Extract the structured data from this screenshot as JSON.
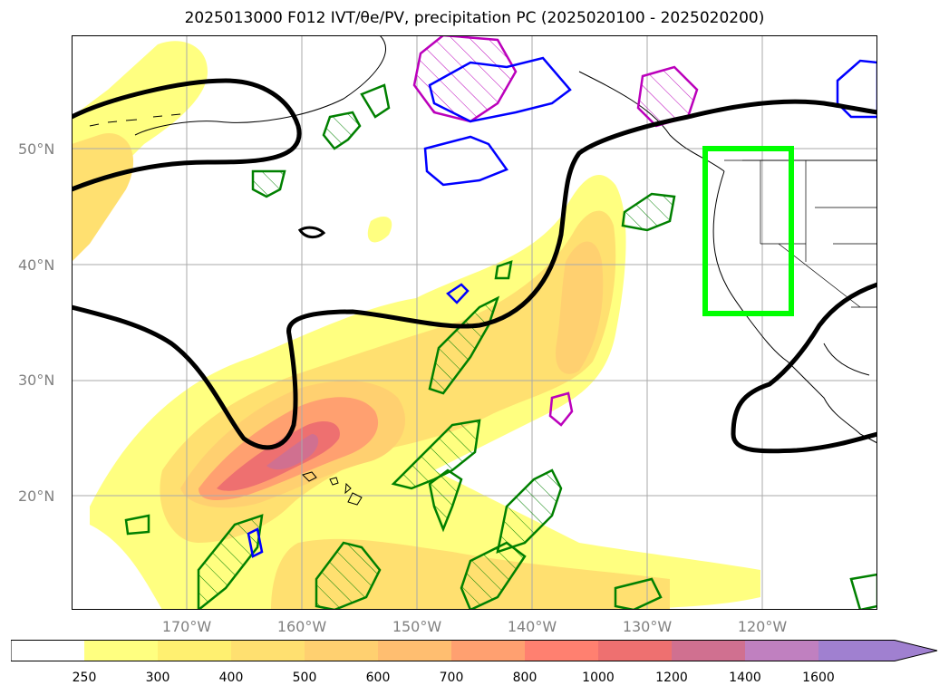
{
  "title": "2025013000 F012 IVT/θe/PV, precipitation PC (2025020100 - 2025020200)",
  "map": {
    "lat_labels": [
      "50°N",
      "40°N",
      "30°N",
      "20°N"
    ],
    "lon_labels": [
      "170°W",
      "160°W",
      "150°W",
      "140°W",
      "130°W",
      "120°W"
    ],
    "highlight_box": {
      "lon_min": -125,
      "lon_max": -118,
      "lat_min": 36,
      "lat_max": 50,
      "color": "#00ff00"
    },
    "contour_colors": {
      "theta_e": "#000000",
      "pv": "#0000ff",
      "precip_pc": "#008000",
      "pv_high": "#bb00bb"
    }
  },
  "colorbar": {
    "levels": [
      "250",
      "300",
      "400",
      "500",
      "600",
      "700",
      "800",
      "1000",
      "1200",
      "1400",
      "1600"
    ],
    "colors": [
      "#ffffff",
      "#ffff80",
      "#fff070",
      "#ffe070",
      "#ffd070",
      "#ffbe70",
      "#ffa070",
      "#ff8070",
      "#ee7070",
      "#d07090",
      "#c080c0",
      "#a080d0"
    ]
  }
}
